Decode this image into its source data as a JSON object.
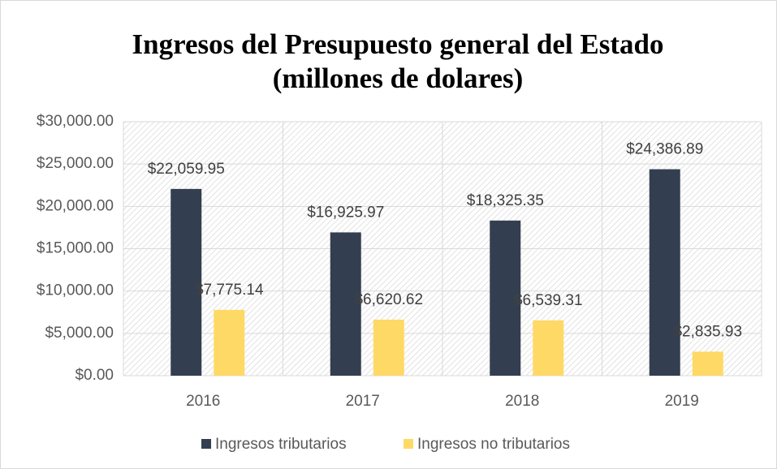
{
  "chart_data": {
    "type": "bar",
    "title": [
      "Ingresos del Presupuesto general del Estado",
      "(millones de dolares)"
    ],
    "categories": [
      "2016",
      "2017",
      "2018",
      "2019"
    ],
    "series": [
      {
        "name": "Ingresos tributarios",
        "color": "#333f50",
        "values": [
          22059.95,
          16925.97,
          18325.35,
          24386.89
        ],
        "value_labels": [
          "$22,059.95",
          "$16,925.97",
          "$18,325.35",
          "$24,386.89"
        ]
      },
      {
        "name": "Ingresos no tributarios",
        "color": "#ffd966",
        "values": [
          7775.14,
          6620.62,
          6539.31,
          2835.93
        ],
        "value_labels": [
          "$7,775.14",
          "$6,620.62",
          "$6,539.31",
          "$2,835.93"
        ]
      }
    ],
    "ylim": [
      0,
      30000
    ],
    "yticks": [
      {
        "value": 0,
        "label": "$0.00"
      },
      {
        "value": 5000,
        "label": "$5,000.00"
      },
      {
        "value": 10000,
        "label": "$10,000.00"
      },
      {
        "value": 15000,
        "label": "$15,000.00"
      },
      {
        "value": 20000,
        "label": "$20,000.00"
      },
      {
        "value": 25000,
        "label": "$25,000.00"
      },
      {
        "value": 30000,
        "label": "$30,000.00"
      }
    ],
    "grid": true,
    "legend": "bottom"
  }
}
